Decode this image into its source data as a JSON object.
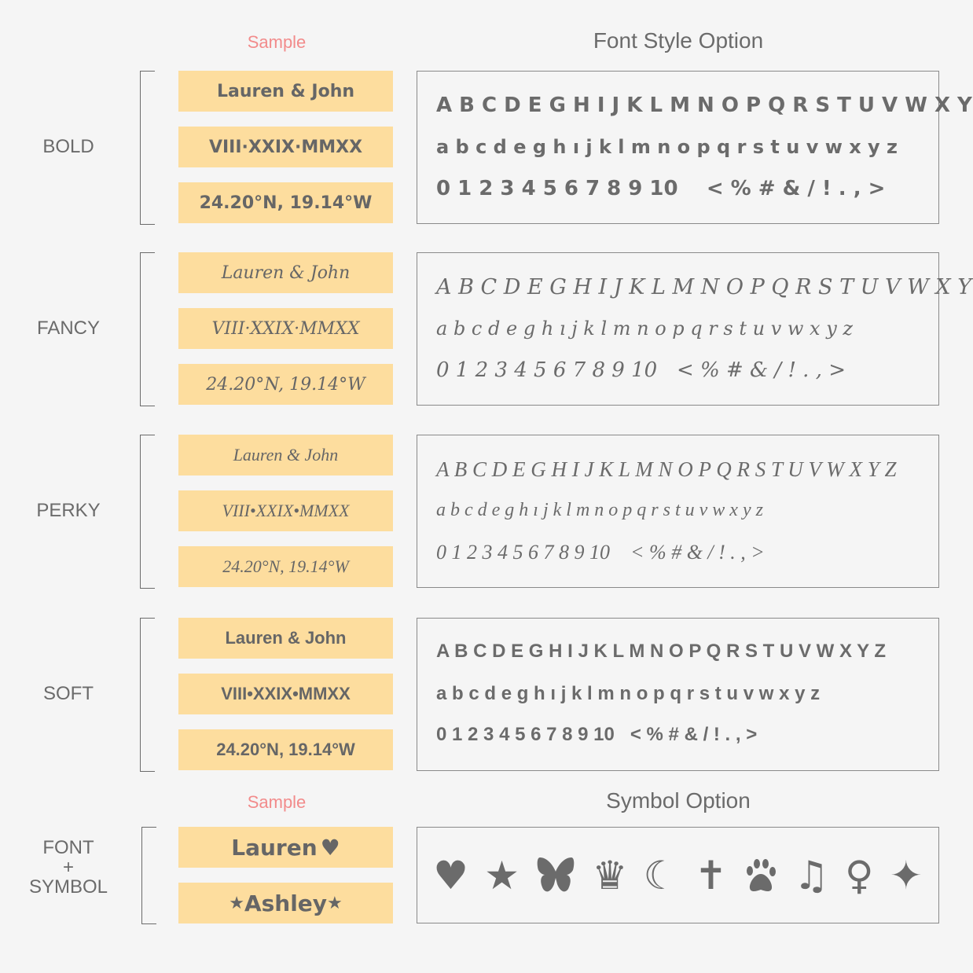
{
  "sample_header": "Sample",
  "font_style_header": "Font Style Option",
  "symbol_header": "Symbol Option",
  "colors": {
    "background": "#f5f5f5",
    "sample_box": "#fddd9e",
    "text": "#6b6b6b",
    "accent": "#f28b8b"
  },
  "groups": [
    {
      "label": "BOLD",
      "style": "bold",
      "samples": [
        "Lauren & John",
        "VIII·XXIX·MMXX",
        "24.20°N, 19.14°W"
      ],
      "uppercase": "A B C D E G H I J K L M N O P Q R S T U V W X Y Z",
      "lowercase": "a b c d e g h ı j k l m n o p q r s t u v w x y z",
      "digits": "0 1 2 3 4 5 6 7 8 9 10    < % # & / ! . , >"
    },
    {
      "label": "FANCY",
      "style": "fancy",
      "samples": [
        "Lauren & John",
        "VIII·XXIX·MMXX",
        "24.20°N, 19.14°W"
      ],
      "uppercase": "A B C D E G H I J K L M N O P Q R S T U V W X Y Z",
      "lowercase": "a b c d e g h ı j k l m n o p q r s t u v w x y z",
      "digits": "0 1 2 3 4 5 6 7 8 9 10   < % # & / ! . , >"
    },
    {
      "label": "PERKY",
      "style": "perky",
      "samples": [
        "Lauren & John",
        "VIII•XXIX•MMXX",
        "24.20°N, 19.14°W"
      ],
      "uppercase": "A B C D E G H I J K L M N O P Q R S T U V W X Y Z",
      "lowercase": "a b c d e g h ı j k l m n o p q r s t u v w x y z",
      "digits": "0 1 2 3 4 5 6 7 8 9 10    < % # & / ! . , >"
    },
    {
      "label": "SOFT",
      "style": "soft",
      "samples": [
        "Lauren & John",
        "VIII•XXIX•MMXX",
        "24.20°N, 19.14°W"
      ],
      "uppercase": "A B C D E G H I J K L M N O P Q R S T U V W X Y Z",
      "lowercase": "a b c d e g h ı j k l m n o p q r s t u v w x y z",
      "digits": "0 1 2 3 4 5 6 7 8 9 10   < % # & / ! . , >"
    }
  ],
  "symbol_group": {
    "label_line1": "FONT",
    "label_line2": "+",
    "label_line3": "SYMBOL",
    "sample1_text": "Lauren",
    "sample1_symbol": "♥",
    "sample2_text": "Ashley",
    "sample2_symbol_left": "★",
    "sample2_symbol_right": "★",
    "symbols": [
      {
        "name": "heart",
        "glyph": "♥"
      },
      {
        "name": "star",
        "glyph": "★"
      },
      {
        "name": "butterfly",
        "glyph": ""
      },
      {
        "name": "crown",
        "glyph": "♛"
      },
      {
        "name": "moon",
        "glyph": "☾"
      },
      {
        "name": "cross",
        "glyph": "✝"
      },
      {
        "name": "paw",
        "glyph": ""
      },
      {
        "name": "music-note",
        "glyph": "♫"
      },
      {
        "name": "female",
        "glyph": "♀"
      },
      {
        "name": "sparkle",
        "glyph": "✦"
      }
    ]
  }
}
